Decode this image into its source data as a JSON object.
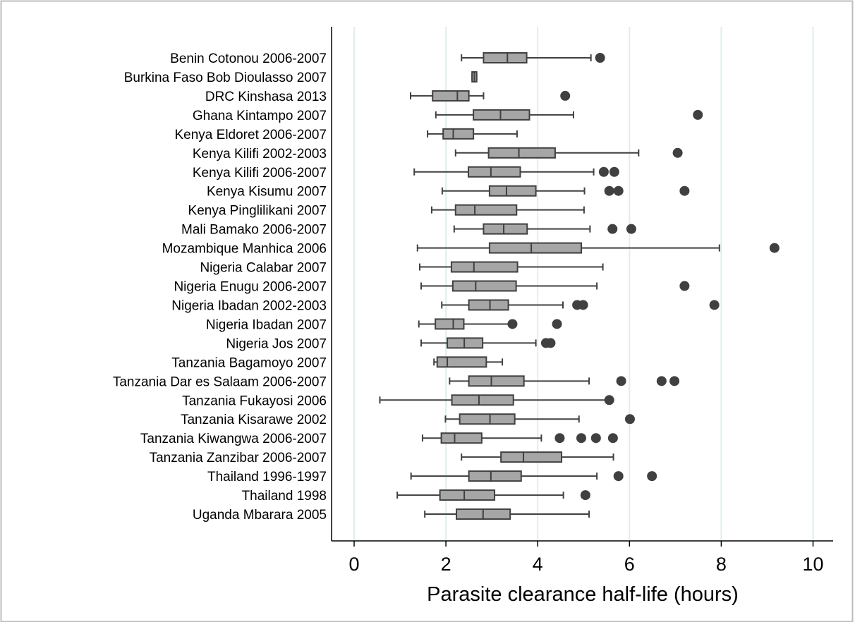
{
  "chart_data": {
    "type": "boxplot",
    "orientation": "horizontal",
    "xlabel": "Parasite clearance half-life (hours)",
    "xlim": [
      0,
      10.4
    ],
    "xticks": [
      0,
      2,
      4,
      6,
      8,
      10
    ],
    "grid": "vertical",
    "colors": {
      "box_fill": "#a6a6a6",
      "stroke": "#404040",
      "outlier": "#404040",
      "grid": "#dfeeee"
    },
    "categories": [
      "Benin Cotonou 2006-2007",
      "Burkina Faso Bob Dioulasso 2007",
      "DRC Kinshasa 2013",
      "Ghana Kintampo 2007",
      "Kenya Eldoret 2006-2007",
      "Kenya Kilifi 2002-2003",
      "Kenya Kilifi 2006-2007",
      "Kenya Kisumu 2007",
      "Kenya Pinglilikani 2007",
      "Mali Bamako 2006-2007",
      "Mozambique Manhica 2006",
      "Nigeria Calabar 2007",
      "Nigeria Enugu 2006-2007",
      "Nigeria Ibadan 2002-2003",
      "Nigeria Ibadan 2007",
      "Nigeria Jos 2007",
      "Tanzania Bagamoyo 2007",
      "Tanzania Dar es Salaam 2006-2007",
      "Tanzania Fukayosi 2006",
      "Tanzania Kisarawe 2002",
      "Tanzania Kiwangwa 2006-2007",
      "Tanzania Zanzibar 2006-2007",
      "Thailand  1996-1997",
      "Thailand  1998",
      "Uganda Mbarara 2005"
    ],
    "boxes": [
      {
        "min": 2.34,
        "q1": 2.82,
        "median": 3.34,
        "q3": 3.76,
        "max": 5.16,
        "outliers": [
          5.36
        ]
      },
      {
        "min": 2.57,
        "q1": 2.57,
        "median": 2.62,
        "q3": 2.67,
        "max": 2.67,
        "outliers": []
      },
      {
        "min": 1.23,
        "q1": 1.71,
        "median": 2.25,
        "q3": 2.5,
        "max": 2.82,
        "outliers": [
          4.6
        ]
      },
      {
        "min": 1.78,
        "q1": 2.6,
        "median": 3.19,
        "q3": 3.82,
        "max": 4.78,
        "outliers": [
          7.49
        ]
      },
      {
        "min": 1.6,
        "q1": 1.94,
        "median": 2.16,
        "q3": 2.6,
        "max": 3.55,
        "outliers": []
      },
      {
        "min": 2.21,
        "q1": 2.93,
        "median": 3.59,
        "q3": 4.38,
        "max": 6.2,
        "outliers": [
          7.05
        ]
      },
      {
        "min": 1.31,
        "q1": 2.49,
        "median": 2.98,
        "q3": 3.62,
        "max": 5.22,
        "outliers": [
          5.44,
          5.67
        ]
      },
      {
        "min": 1.92,
        "q1": 2.95,
        "median": 3.32,
        "q3": 3.96,
        "max": 5.02,
        "outliers": [
          5.56,
          5.76,
          7.2
        ]
      },
      {
        "min": 1.69,
        "q1": 2.21,
        "median": 2.63,
        "q3": 3.54,
        "max": 5.01,
        "outliers": []
      },
      {
        "min": 2.18,
        "q1": 2.82,
        "median": 3.26,
        "q3": 3.77,
        "max": 5.14,
        "outliers": [
          5.63,
          6.04
        ]
      },
      {
        "min": 1.38,
        "q1": 2.95,
        "median": 3.86,
        "q3": 4.95,
        "max": 7.96,
        "outliers": [
          9.16
        ]
      },
      {
        "min": 1.43,
        "q1": 2.12,
        "median": 2.61,
        "q3": 3.56,
        "max": 5.42,
        "outliers": []
      },
      {
        "min": 1.46,
        "q1": 2.15,
        "median": 2.65,
        "q3": 3.53,
        "max": 5.29,
        "outliers": [
          7.2
        ]
      },
      {
        "min": 1.91,
        "q1": 2.5,
        "median": 2.96,
        "q3": 3.36,
        "max": 4.55,
        "outliers": [
          4.86,
          4.99,
          7.85
        ]
      },
      {
        "min": 1.41,
        "q1": 1.77,
        "median": 2.16,
        "q3": 2.39,
        "max": 3.43,
        "outliers": [
          3.45,
          4.42
        ]
      },
      {
        "min": 1.46,
        "q1": 2.03,
        "median": 2.4,
        "q3": 2.8,
        "max": 3.96,
        "outliers": [
          4.18,
          4.28
        ]
      },
      {
        "min": 1.74,
        "q1": 1.81,
        "median": 2.03,
        "q3": 2.88,
        "max": 3.23,
        "outliers": []
      },
      {
        "min": 2.08,
        "q1": 2.5,
        "median": 2.99,
        "q3": 3.7,
        "max": 5.12,
        "outliers": [
          5.82,
          6.7,
          6.98
        ]
      },
      {
        "min": 0.56,
        "q1": 2.13,
        "median": 2.72,
        "q3": 3.47,
        "max": 5.5,
        "outliers": [
          5.56
        ]
      },
      {
        "min": 1.99,
        "q1": 2.3,
        "median": 2.96,
        "q3": 3.5,
        "max": 4.9,
        "outliers": [
          6.01
        ]
      },
      {
        "min": 1.49,
        "q1": 1.9,
        "median": 2.19,
        "q3": 2.78,
        "max": 4.08,
        "outliers": [
          4.48,
          4.95,
          5.27,
          5.64
        ]
      },
      {
        "min": 2.34,
        "q1": 3.2,
        "median": 3.69,
        "q3": 4.52,
        "max": 5.65,
        "outliers": []
      },
      {
        "min": 1.24,
        "q1": 2.5,
        "median": 2.98,
        "q3": 3.64,
        "max": 5.29,
        "outliers": [
          5.76,
          6.49
        ]
      },
      {
        "min": 0.94,
        "q1": 1.87,
        "median": 2.4,
        "q3": 3.06,
        "max": 4.56,
        "outliers": [
          5.04
        ]
      },
      {
        "min": 1.54,
        "q1": 2.23,
        "median": 2.81,
        "q3": 3.4,
        "max": 5.12,
        "outliers": []
      }
    ]
  }
}
